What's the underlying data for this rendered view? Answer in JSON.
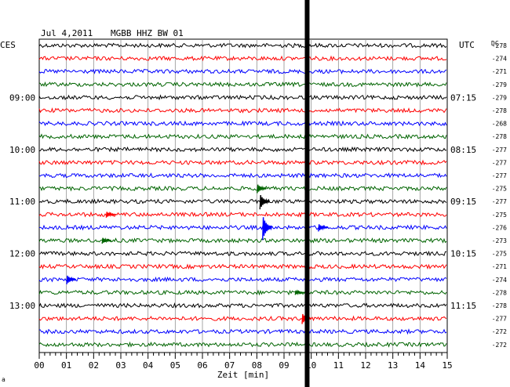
{
  "header": {
    "date": "Jul 4,2011",
    "station": "MGBB HHZ BW 01"
  },
  "left_axis_label": "CES",
  "right_axis_label": "UTC",
  "dc_label": "DC",
  "xlabel": "Zeit [min]",
  "corner_mark": "a",
  "chart_data": {
    "type": "line",
    "title": "Jul 4,2011   MGBB HHZ BW 01",
    "xlabel": "Zeit [min]",
    "xlim": [
      0,
      15
    ],
    "x_ticks": [
      "00",
      "01",
      "02",
      "03",
      "04",
      "05",
      "06",
      "07",
      "08",
      "09",
      "10",
      "11",
      "12",
      "13",
      "14",
      "15"
    ],
    "trace_count": 24,
    "trace_colors": [
      "#000000",
      "#ff0000",
      "#0000ff",
      "#006400"
    ],
    "left_time_labels": [
      {
        "trace": 4,
        "label": "09:00"
      },
      {
        "trace": 8,
        "label": "10:00"
      },
      {
        "trace": 12,
        "label": "11:00"
      },
      {
        "trace": 16,
        "label": "12:00"
      },
      {
        "trace": 20,
        "label": "13:00"
      }
    ],
    "right_time_labels": [
      {
        "trace": 4,
        "label": "07:15"
      },
      {
        "trace": 8,
        "label": "08:15"
      },
      {
        "trace": 12,
        "label": "09:15"
      },
      {
        "trace": 16,
        "label": "10:15"
      },
      {
        "trace": 20,
        "label": "11:15"
      }
    ],
    "dc_offsets": [
      -278,
      -274,
      -271,
      -279,
      -279,
      -278,
      -268,
      -278,
      -277,
      -277,
      -277,
      -275,
      -277,
      -275,
      -276,
      -273,
      -275,
      -271,
      -274,
      -278,
      -278,
      -277,
      -272,
      -272
    ],
    "vertical_marker_minute": 9.85,
    "events": [
      {
        "trace": 11,
        "minute": 8.1,
        "amplitude": 6
      },
      {
        "trace": 12,
        "minute": 8.2,
        "amplitude": 10
      },
      {
        "trace": 13,
        "minute": 2.55,
        "amplitude": 4
      },
      {
        "trace": 14,
        "minute": 8.3,
        "amplitude": 16
      },
      {
        "trace": 14,
        "minute": 10.35,
        "amplitude": 5
      },
      {
        "trace": 15,
        "minute": 2.4,
        "amplitude": 4
      },
      {
        "trace": 18,
        "minute": 1.1,
        "amplitude": 6
      },
      {
        "trace": 19,
        "minute": 9.5,
        "amplitude": 3
      },
      {
        "trace": 21,
        "minute": 9.75,
        "amplitude": 7
      }
    ],
    "grid": true
  }
}
